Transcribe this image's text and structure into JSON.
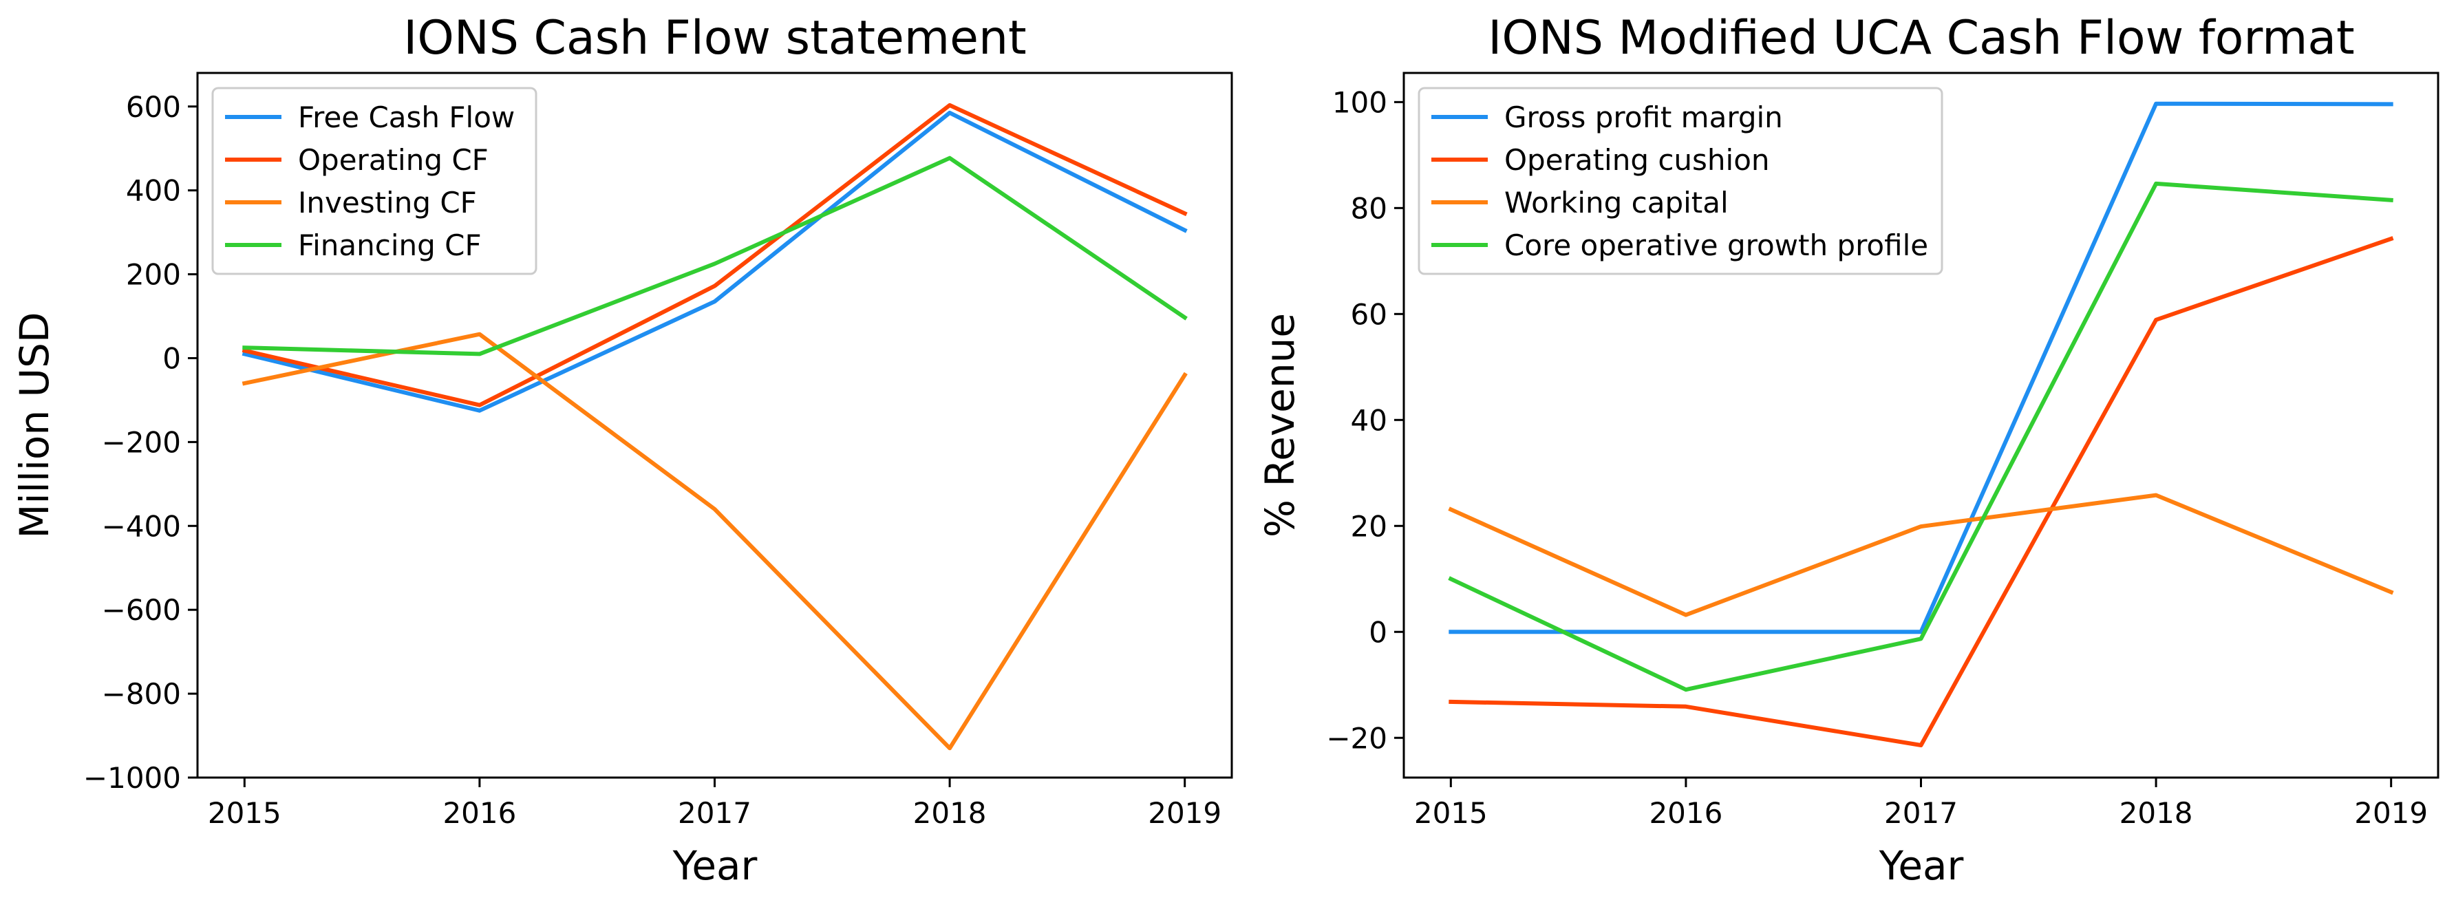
{
  "chart_data": [
    {
      "type": "line",
      "title": "IONS Cash Flow statement",
      "xlabel": "Year",
      "ylabel": "Million USD",
      "x": [
        2015,
        2016,
        2017,
        2018,
        2019
      ],
      "ylim": [
        -1000,
        680
      ],
      "yticks": [
        -1000,
        -800,
        -600,
        -400,
        -200,
        0,
        200,
        400,
        600
      ],
      "ytick_labels": [
        "−1000",
        "−800",
        "−600",
        "−400",
        "−200",
        "0",
        "200",
        "400",
        "600"
      ],
      "xtick_labels": [
        "2015",
        "2016",
        "2017",
        "2018",
        "2019"
      ],
      "grid": false,
      "legend": "upper-left",
      "series": [
        {
          "name": "Free Cash Flow",
          "color": "#1f8ef1",
          "values": [
            10,
            -125,
            135,
            585,
            305
          ]
        },
        {
          "name": "Operating CF",
          "color": "#ff4500",
          "values": [
            18,
            -112,
            172,
            603,
            345
          ]
        },
        {
          "name": "Investing CF",
          "color": "#ff8010",
          "values": [
            -60,
            57,
            -360,
            -930,
            -40
          ]
        },
        {
          "name": "Financing CF",
          "color": "#32cd32",
          "values": [
            25,
            10,
            225,
            477,
            97
          ]
        }
      ]
    },
    {
      "type": "line",
      "title": "IONS Modified UCA Cash Flow format",
      "xlabel": "Year",
      "ylabel": "% Revenue",
      "x": [
        2015,
        2016,
        2017,
        2018,
        2019
      ],
      "ylim": [
        -27.5,
        105.5
      ],
      "yticks": [
        -20,
        0,
        20,
        40,
        60,
        80,
        100
      ],
      "ytick_labels": [
        "−20",
        "0",
        "20",
        "40",
        "60",
        "80",
        "100"
      ],
      "xtick_labels": [
        "2015",
        "2016",
        "2017",
        "2018",
        "2019"
      ],
      "grid": false,
      "legend": "upper-left",
      "series": [
        {
          "name": "Gross profit margin",
          "color": "#1f8ef1",
          "values": [
            0,
            0,
            0,
            99.7,
            99.6
          ]
        },
        {
          "name": "Operating cushion",
          "color": "#ff4500",
          "values": [
            -13.2,
            -14.1,
            -21.4,
            58.9,
            74.2
          ]
        },
        {
          "name": "Working capital",
          "color": "#ff8010",
          "values": [
            23.1,
            3.2,
            19.9,
            25.8,
            7.5
          ]
        },
        {
          "name": "Core operative growth profile",
          "color": "#32cd32",
          "values": [
            10.0,
            -10.9,
            -1.3,
            84.6,
            81.5
          ]
        }
      ]
    }
  ]
}
